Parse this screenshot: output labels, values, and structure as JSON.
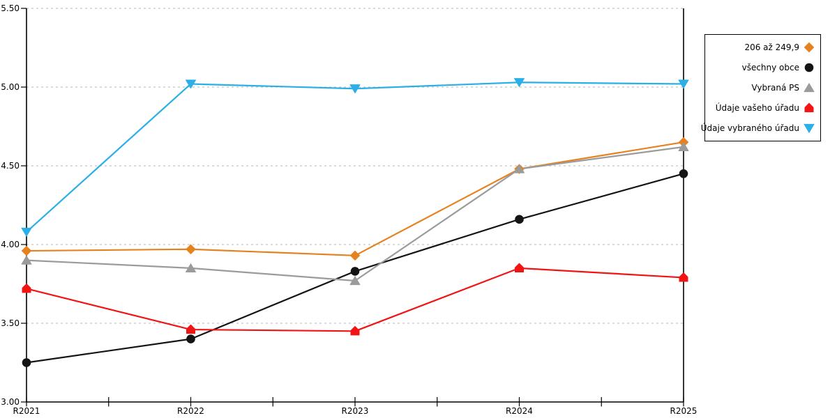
{
  "chart_data": {
    "type": "line",
    "title": "",
    "xlabel": "",
    "ylabel": "",
    "categories": [
      "R2021",
      "R2022",
      "R2023",
      "R2024",
      "R2025"
    ],
    "ylim": [
      3.0,
      5.5
    ],
    "ytick_labels": [
      "3.00",
      "3.50",
      "4.00",
      "4.50",
      "5.00",
      "5.50"
    ],
    "grid": "horizontal-dashed",
    "legend_position": "outside-right-top",
    "series": [
      {
        "name": "206 až 249,9",
        "marker": "diamond",
        "color": "#E6821E",
        "values": [
          3.96,
          3.97,
          3.93,
          4.48,
          4.65
        ]
      },
      {
        "name": "všechny obce",
        "marker": "circle",
        "color": "#141414",
        "values": [
          3.25,
          3.4,
          3.83,
          4.16,
          4.45
        ]
      },
      {
        "name": "Vybraná PS",
        "marker": "triangle-up",
        "color": "#9B9B9B",
        "values": [
          3.9,
          3.85,
          3.77,
          4.48,
          4.62
        ]
      },
      {
        "name": "Údaje vašeho úřadu",
        "marker": "pentagon-up",
        "color": "#F01414",
        "values": [
          3.72,
          3.46,
          3.45,
          3.85,
          3.79
        ]
      },
      {
        "name": "Údaje vybraného úřadu",
        "marker": "triangle-down",
        "color": "#2BAFE6",
        "values": [
          4.08,
          5.02,
          4.99,
          5.03,
          5.02
        ]
      }
    ]
  },
  "colors": {
    "background": "#FFFFFF",
    "axis": "#000000",
    "gridline": "#C4C4C4",
    "text": "#000000"
  }
}
